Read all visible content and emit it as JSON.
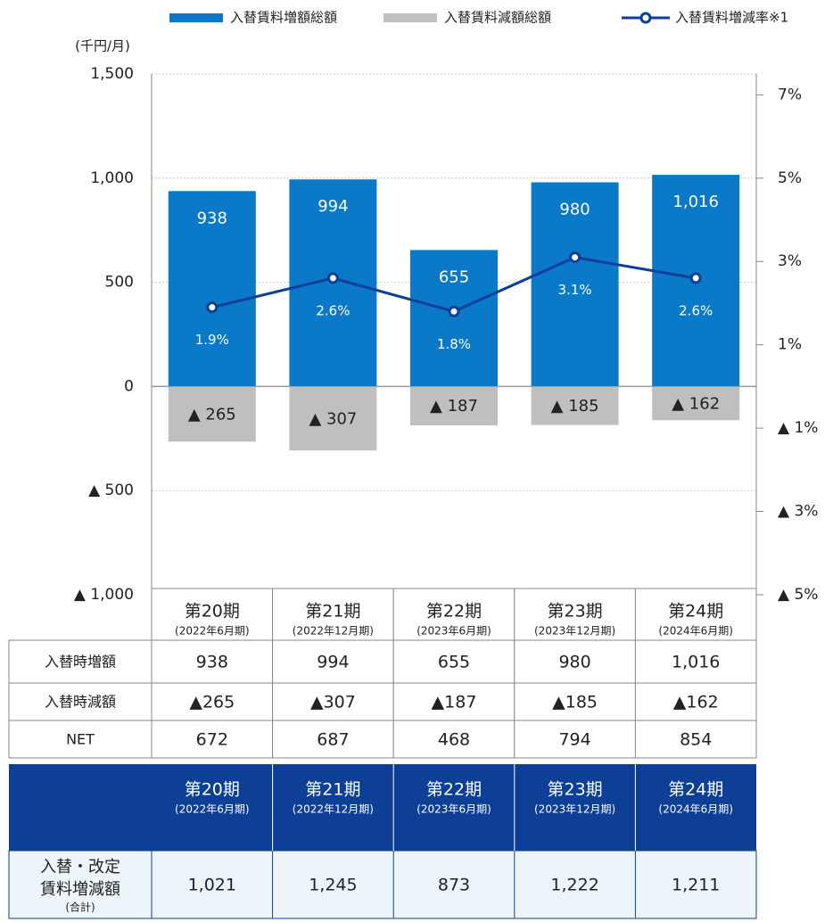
{
  "chart_data": {
    "type": "bar",
    "y_unit": "(千円/月)",
    "categories": [
      "第20期",
      "第21期",
      "第22期",
      "第23期",
      "第24期"
    ],
    "category_sublabels": [
      "(2022年6月期)",
      "(2022年12月期)",
      "(2023年6月期)",
      "(2023年12月期)",
      "(2024年6月期)"
    ],
    "ylim": [
      -1000,
      1500
    ],
    "yticks": [
      {
        "value": -1000,
        "label": "▲ 1,000"
      },
      {
        "value": -500,
        "label": "▲ 500"
      },
      0,
      500,
      {
        "value": 1000,
        "label": "1,000"
      },
      {
        "value": 1500,
        "label": "1,500"
      }
    ],
    "y2lim": [
      -5,
      7.5
    ],
    "y2ticks": [
      {
        "value": -5,
        "label": "▲ 5%"
      },
      {
        "value": -3,
        "label": "▲ 3%"
      },
      {
        "value": -1,
        "label": "▲ 1%"
      },
      {
        "value": 1,
        "label": "1%"
      },
      {
        "value": 3,
        "label": "3%"
      },
      {
        "value": 5,
        "label": "5%"
      },
      {
        "value": 7,
        "label": "7%"
      }
    ],
    "grid": true,
    "series": [
      {
        "name": "入替賃料増額総額",
        "type": "bar",
        "color": "#0a7ac8",
        "values": [
          938,
          994,
          655,
          980,
          1016
        ],
        "value_labels": [
          "938",
          "994",
          "655",
          "980",
          "1,016"
        ]
      },
      {
        "name": "入替賃料減額総額",
        "type": "bar",
        "color": "#bfbfbf",
        "values": [
          -265,
          -307,
          -187,
          -185,
          -162
        ],
        "value_labels": [
          "▲ 265",
          "▲ 307",
          "▲ 187",
          "▲ 185",
          "▲ 162"
        ]
      },
      {
        "name": "入替賃料増減率※1",
        "type": "line",
        "axis": "y2",
        "color": "#0d3f9a",
        "values": [
          1.9,
          2.6,
          1.8,
          3.1,
          2.6
        ],
        "value_labels": [
          "1.9%",
          "2.6%",
          "1.8%",
          "3.1%",
          "2.6%"
        ]
      }
    ]
  },
  "table": {
    "rows": [
      [
        "入替時増額",
        "938",
        "994",
        "655",
        "980",
        "1,016"
      ],
      [
        "入替時減額",
        "▲265",
        "▲307",
        "▲187",
        "▲185",
        "▲162"
      ],
      [
        "NET",
        "672",
        "687",
        "468",
        "794",
        "854"
      ]
    ]
  },
  "summary_table": {
    "row_label": [
      "入替・改定",
      "賃料増減額"
    ],
    "row_note": "(合計)",
    "values": [
      "1,021",
      "1,245",
      "873",
      "1,222",
      "1,211"
    ]
  }
}
